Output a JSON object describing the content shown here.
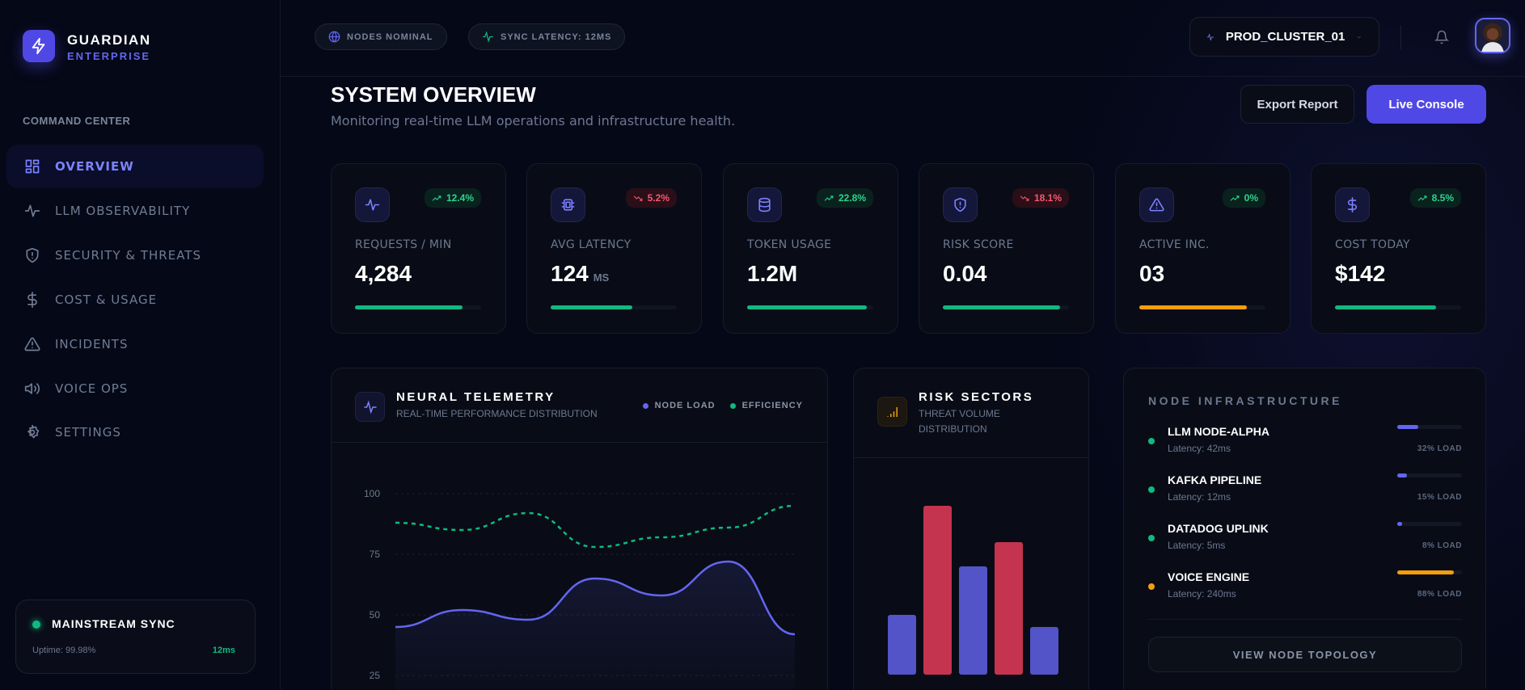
{
  "brand": {
    "name": "GUARDIAN",
    "tier": "ENTERPRISE"
  },
  "sidebar": {
    "section": "COMMAND CENTER",
    "items": [
      {
        "label": "OVERVIEW",
        "icon": "grid-icon",
        "active": true
      },
      {
        "label": "LLM OBSERVABILITY",
        "icon": "activity-icon"
      },
      {
        "label": "SECURITY & THREATS",
        "icon": "shield-alert-icon"
      },
      {
        "label": "COST & USAGE",
        "icon": "dollar-icon"
      },
      {
        "label": "INCIDENTS",
        "icon": "warning-icon"
      },
      {
        "label": "VOICE OPS",
        "icon": "speaker-icon"
      },
      {
        "label": "SETTINGS",
        "icon": "gear-icon"
      }
    ],
    "sync": {
      "title": "MAINSTREAM SYNC",
      "uptime": "Uptime: 99.98%",
      "latency": "12ms"
    }
  },
  "topbar": {
    "status": "NODES NOMINAL",
    "latency": "SYNC LATENCY: 12MS",
    "cluster": "PROD_CLUSTER_01"
  },
  "header": {
    "title": "SYSTEM OVERVIEW",
    "subtitle": "Monitoring real-time LLM operations and infrastructure health.",
    "export": "Export Report",
    "console": "Live Console"
  },
  "colors": {
    "accent": "#5048e5",
    "green": "#10b981",
    "red": "#c5344f",
    "amber": "#f59e0b",
    "indigo": "#6366f1"
  },
  "stats": [
    {
      "label": "REQUESTS / MIN",
      "value": "4,284",
      "unit": "",
      "trend": "12.4%",
      "dir": "up",
      "icon": "activity-icon",
      "progress": 0.85,
      "color": "#10b981"
    },
    {
      "label": "AVG LATENCY",
      "value": "124",
      "unit": "MS",
      "trend": "5.2%",
      "dir": "down",
      "icon": "cpu-icon",
      "progress": 0.65,
      "color": "#10b981"
    },
    {
      "label": "TOKEN USAGE",
      "value": "1.2M",
      "unit": "",
      "trend": "22.8%",
      "dir": "up",
      "icon": "database-icon",
      "progress": 0.95,
      "color": "#10b981"
    },
    {
      "label": "RISK SCORE",
      "value": "0.04",
      "unit": "",
      "trend": "18.1%",
      "dir": "down",
      "icon": "shield-alert-icon",
      "progress": 0.93,
      "color": "#10b981"
    },
    {
      "label": "ACTIVE INC.",
      "value": "03",
      "unit": "",
      "trend": "0%",
      "dir": "up",
      "icon": "warning-icon",
      "progress": 0.85,
      "color": "#f59e0b"
    },
    {
      "label": "COST TODAY",
      "value": "$142",
      "unit": "",
      "trend": "8.5%",
      "dir": "up",
      "icon": "dollar-icon",
      "progress": 0.8,
      "color": "#10b981"
    }
  ],
  "telemetry": {
    "title": "NEURAL TELEMETRY",
    "subtitle": "REAL-TIME PERFORMANCE DISTRIBUTION"
  },
  "risk": {
    "title": "RISK SECTORS",
    "subtitle1": "THREAT VOLUME",
    "subtitle2": "DISTRIBUTION"
  },
  "chart_data": [
    {
      "type": "area",
      "yticks": [
        100,
        75,
        50,
        25
      ],
      "grid": true,
      "legend": "top-right",
      "series": [
        {
          "name": "NODE LOAD",
          "values": [
            45,
            52,
            48,
            65,
            58,
            72,
            42
          ],
          "color": "#6366f1",
          "style": "solid-area"
        },
        {
          "name": "EFFICIENCY",
          "values": [
            88,
            85,
            92,
            78,
            82,
            86,
            95
          ],
          "color": "#10b981",
          "style": "dashed"
        }
      ]
    },
    {
      "type": "bar",
      "values": [
        50,
        95,
        70,
        80,
        45
      ],
      "colors": [
        "#5254c8",
        "#c5344f",
        "#5254c8",
        "#c5344f",
        "#5254c8"
      ]
    }
  ],
  "nodes": {
    "title": "NODE INFRASTRUCTURE",
    "button": "VIEW NODE TOPOLOGY",
    "items": [
      {
        "name": "LLM NODE-ALPHA",
        "latency": "Latency: 42ms",
        "load": 32,
        "load_label": "32% LOAD",
        "status": "#10b981",
        "bar": "#6366f1"
      },
      {
        "name": "KAFKA PIPELINE",
        "latency": "Latency: 12ms",
        "load": 15,
        "load_label": "15% LOAD",
        "status": "#10b981",
        "bar": "#6366f1"
      },
      {
        "name": "DATADOG UPLINK",
        "latency": "Latency: 5ms",
        "load": 8,
        "load_label": "8% LOAD",
        "status": "#10b981",
        "bar": "#6366f1"
      },
      {
        "name": "VOICE ENGINE",
        "latency": "Latency: 240ms",
        "load": 88,
        "load_label": "88% LOAD",
        "status": "#f59e0b",
        "bar": "#f59e0b"
      }
    ]
  }
}
